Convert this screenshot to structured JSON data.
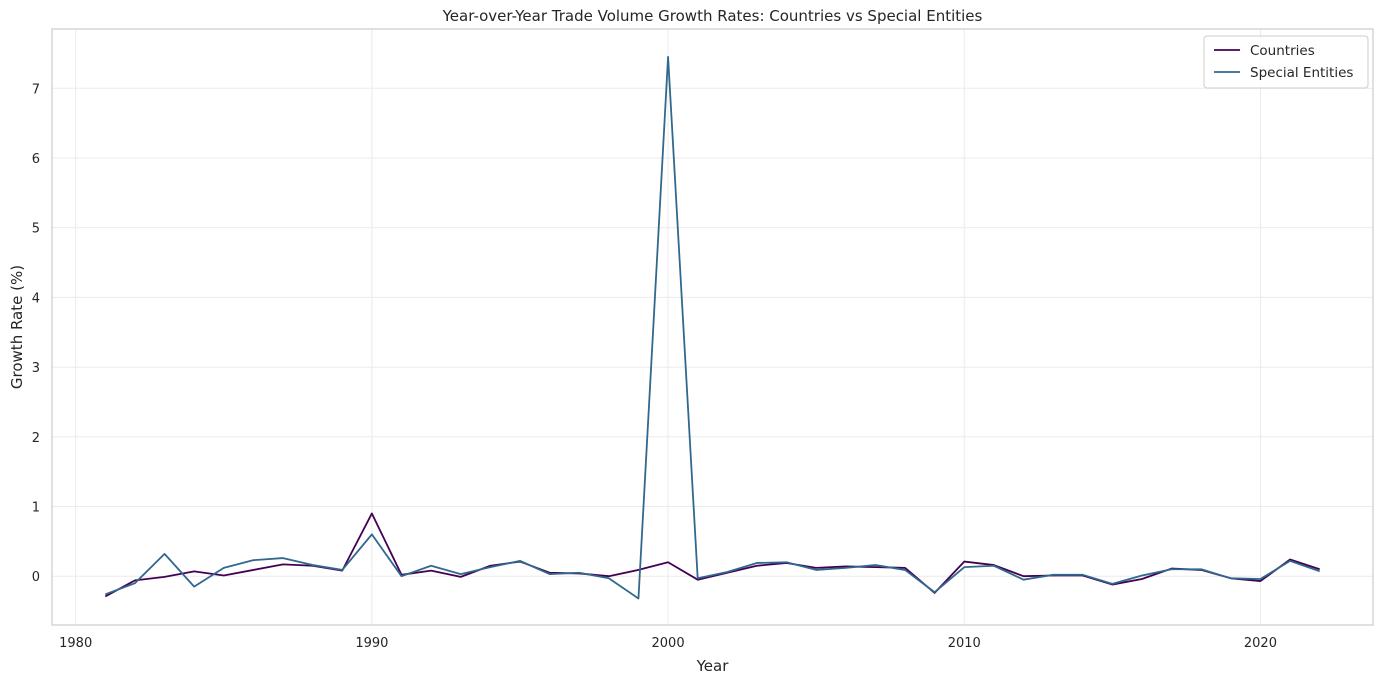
{
  "chart_data": {
    "type": "line",
    "title": "Year-over-Year Trade Volume Growth Rates: Countries vs Special Entities",
    "xlabel": "Year",
    "ylabel": "Growth Rate (%)",
    "xlim": [
      1979.2,
      2023.8
    ],
    "ylim": [
      -0.7,
      7.85
    ],
    "x_ticks": [
      1980,
      1990,
      2000,
      2010,
      2020
    ],
    "y_ticks": [
      0,
      1,
      2,
      3,
      4,
      5,
      6,
      7
    ],
    "grid": true,
    "legend_position": "top-right",
    "x": [
      1981,
      1982,
      1983,
      1984,
      1985,
      1986,
      1987,
      1988,
      1989,
      1990,
      1991,
      1992,
      1993,
      1994,
      1995,
      1996,
      1997,
      1998,
      1999,
      2000,
      2001,
      2002,
      2003,
      2004,
      2005,
      2006,
      2007,
      2008,
      2009,
      2010,
      2011,
      2012,
      2013,
      2014,
      2015,
      2016,
      2017,
      2018,
      2019,
      2020,
      2021,
      2022
    ],
    "series": [
      {
        "name": "Countries",
        "color": "#440154",
        "values": [
          -0.29,
          -0.06,
          -0.01,
          0.07,
          0.01,
          0.09,
          0.17,
          0.15,
          0.08,
          0.9,
          0.02,
          0.08,
          -0.01,
          0.15,
          0.21,
          0.05,
          0.04,
          0.0,
          0.09,
          0.2,
          -0.05,
          0.05,
          0.15,
          0.19,
          0.12,
          0.14,
          0.13,
          0.12,
          -0.24,
          0.21,
          0.16,
          0.0,
          0.01,
          0.01,
          -0.12,
          -0.04,
          0.11,
          0.09,
          -0.03,
          -0.07,
          0.24,
          0.1
        ]
      },
      {
        "name": "Special Entities",
        "color": "#31688e",
        "values": [
          -0.26,
          -0.1,
          0.32,
          -0.15,
          0.12,
          0.23,
          0.26,
          0.16,
          0.09,
          0.6,
          0.0,
          0.15,
          0.03,
          0.13,
          0.22,
          0.03,
          0.05,
          -0.03,
          -0.32,
          7.45,
          -0.03,
          0.06,
          0.19,
          0.2,
          0.09,
          0.12,
          0.16,
          0.09,
          -0.23,
          0.13,
          0.15,
          -0.05,
          0.02,
          0.02,
          -0.11,
          0.01,
          0.1,
          0.1,
          -0.03,
          -0.04,
          0.22,
          0.07
        ]
      }
    ]
  }
}
